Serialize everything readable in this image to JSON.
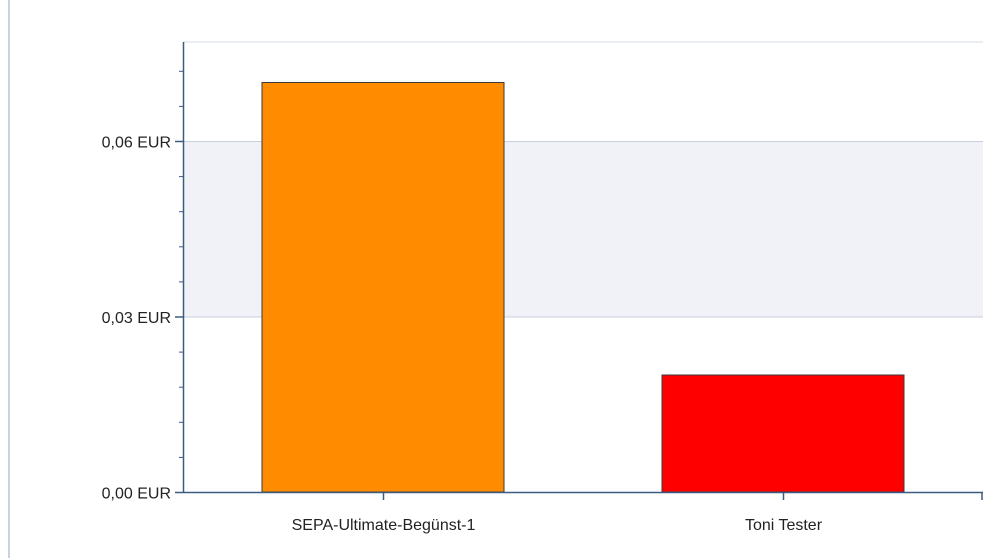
{
  "chart_data": {
    "type": "bar",
    "categories": [
      "SEPA-Ultimate-Begünst-1",
      "Toni Tester"
    ],
    "values": [
      0.07,
      0.02
    ],
    "bar_colors": [
      "#ff8c00",
      "#ff0000"
    ],
    "ylim": [
      0,
      0.08
    ],
    "yticks": [
      0,
      0.03,
      0.06
    ],
    "ytick_labels": [
      "0,00 EUR",
      "0,03 EUR",
      "0,06 EUR"
    ],
    "title": "",
    "xlabel": "",
    "ylabel": "",
    "grid": true,
    "band_color": "#f0f2f7",
    "axis_color": "#3d5a80"
  }
}
